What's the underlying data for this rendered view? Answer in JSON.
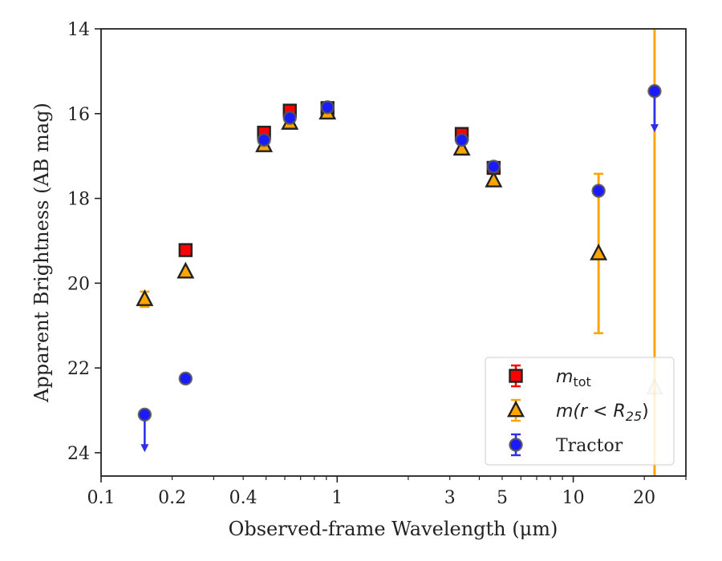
{
  "chart_data": {
    "type": "scatter",
    "xlabel": "Observed-frame Wavelength (μm)",
    "ylabel": "Apparent Brightness (AB mag)",
    "xscale": "log",
    "xlim": [
      0.1,
      30
    ],
    "ylim": [
      24.55,
      14.0
    ],
    "y_inverted": true,
    "x_ticks": [
      0.1,
      0.2,
      0.4,
      1,
      3,
      5,
      10,
      20
    ],
    "x_tick_labels": [
      "0.1",
      "0.2",
      "0.4",
      "1",
      "3",
      "5",
      "10",
      "20"
    ],
    "y_ticks": [
      14,
      16,
      18,
      20,
      22,
      24
    ],
    "y_tick_labels": [
      "14",
      "16",
      "18",
      "20",
      "22",
      "24"
    ],
    "legend_position": "lower-right",
    "series": [
      {
        "key": "mtot",
        "name": "m_tot",
        "legend_main": "m",
        "legend_sub": "tot",
        "marker": "square",
        "color": "#ff0000",
        "errcolor": "#ff0000",
        "points": [
          {
            "x": 0.228,
            "y": 19.22
          },
          {
            "x": 0.49,
            "y": 16.45
          },
          {
            "x": 0.63,
            "y": 15.93
          },
          {
            "x": 0.91,
            "y": 15.87
          },
          {
            "x": 3.37,
            "y": 16.48
          },
          {
            "x": 4.6,
            "y": 17.28
          }
        ]
      },
      {
        "key": "mr25",
        "name": "m(r < R_25)",
        "legend_main": "m(r < R",
        "legend_sub": "25",
        "legend_end": ")",
        "marker": "triangle",
        "color": "#ffa500",
        "errcolor": "#ffa500",
        "points": [
          {
            "x": 0.153,
            "y": 20.38,
            "err": 0.18
          },
          {
            "x": 0.228,
            "y": 19.73
          },
          {
            "x": 0.49,
            "y": 16.75
          },
          {
            "x": 0.63,
            "y": 16.22
          },
          {
            "x": 0.91,
            "y": 15.98
          },
          {
            "x": 3.37,
            "y": 16.83
          },
          {
            "x": 4.6,
            "y": 17.58
          },
          {
            "x": 12.8,
            "y": 19.3,
            "err_lo": 17.42,
            "err_hi": 21.18
          },
          {
            "x": 22.1,
            "y": 22.47,
            "err_lo": 14.0,
            "err_hi": 24.55
          }
        ]
      },
      {
        "key": "tractor",
        "name": "Tractor",
        "legend_main": "Tractor",
        "marker": "circle",
        "color": "#1a1aff",
        "errcolor": "#2f2fe8",
        "points": [
          {
            "x": 0.153,
            "y": 23.1,
            "upper_limit": true,
            "arrow_to": 23.95
          },
          {
            "x": 0.228,
            "y": 22.25
          },
          {
            "x": 0.49,
            "y": 16.62
          },
          {
            "x": 0.63,
            "y": 16.1
          },
          {
            "x": 0.91,
            "y": 15.85
          },
          {
            "x": 3.37,
            "y": 16.62
          },
          {
            "x": 4.6,
            "y": 17.25
          },
          {
            "x": 12.8,
            "y": 17.82
          },
          {
            "x": 22.1,
            "y": 15.47,
            "upper_limit": true,
            "arrow_to": 16.4
          }
        ]
      }
    ]
  }
}
